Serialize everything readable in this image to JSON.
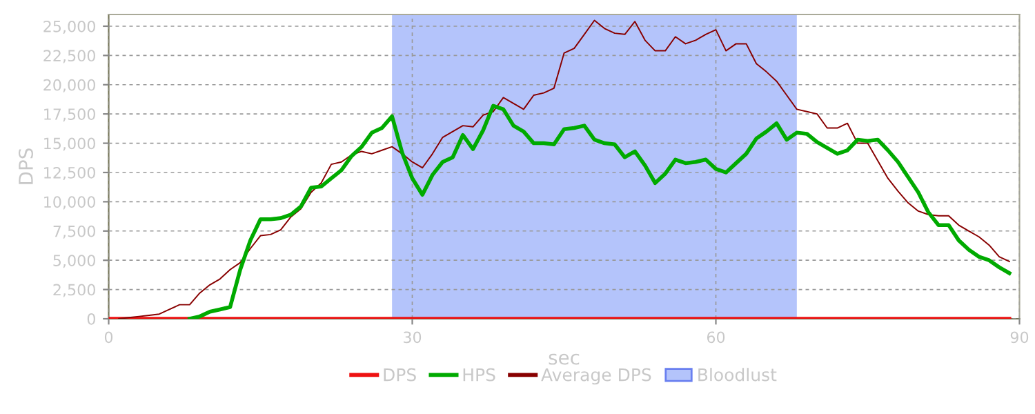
{
  "chart_data": {
    "type": "line",
    "xlabel": "sec",
    "ylabel": "DPS",
    "xlim": [
      0,
      90
    ],
    "xticks": [
      0,
      30,
      60,
      90
    ],
    "ylim": [
      0,
      26000
    ],
    "yticks": [
      {
        "value": 0,
        "label": "0"
      },
      {
        "value": 2500,
        "label": "2,500"
      },
      {
        "value": 5000,
        "label": "5,000"
      },
      {
        "value": 7500,
        "label": "7,500"
      },
      {
        "value": 10000,
        "label": "10,000"
      },
      {
        "value": 12500,
        "label": "12,500"
      },
      {
        "value": 15000,
        "label": "15,000"
      },
      {
        "value": 17500,
        "label": "17,500"
      },
      {
        "value": 20000,
        "label": "20,000"
      },
      {
        "value": 22500,
        "label": "22,500"
      },
      {
        "value": 25000,
        "label": "25,000"
      }
    ],
    "grid": true,
    "legend": "bottom",
    "marker": "none",
    "line_style": "solid",
    "series": [
      {
        "name": "DPS",
        "color": "#ee1111",
        "x": [
          0,
          89
        ],
        "values": [
          0,
          0
        ]
      },
      {
        "name": "HPS",
        "color": "#00aa00",
        "x": [
          8,
          9,
          10,
          11,
          12,
          13,
          14,
          15,
          16,
          17,
          18,
          19,
          20,
          21,
          22,
          23,
          24,
          25,
          26,
          27,
          28,
          29,
          30,
          31,
          32,
          33,
          34,
          35,
          36,
          37,
          38,
          39,
          40,
          41,
          42,
          43,
          44,
          45,
          46,
          47,
          48,
          49,
          50,
          51,
          52,
          53,
          54,
          55,
          56,
          57,
          58,
          59,
          60,
          61,
          62,
          63,
          64,
          65,
          66,
          67,
          68,
          69,
          70,
          71,
          72,
          73,
          74,
          75,
          76,
          77,
          78,
          79,
          80,
          81,
          82,
          83,
          84,
          85,
          86,
          87,
          88,
          89
        ],
        "values": [
          0,
          200,
          600,
          800,
          1000,
          4200,
          6700,
          8500,
          8500,
          8600,
          8900,
          9600,
          11200,
          11300,
          12000,
          12700,
          13900,
          14700,
          15900,
          16300,
          17300,
          14200,
          12000,
          10600,
          12300,
          13400,
          13800,
          15700,
          14500,
          16100,
          18200,
          17900,
          16500,
          16000,
          15000,
          15000,
          14900,
          16200,
          16300,
          16500,
          15300,
          15000,
          14900,
          13800,
          14300,
          13100,
          11600,
          12400,
          13600,
          13300,
          13400,
          13600,
          12800,
          12500,
          13300,
          14100,
          15400,
          16000,
          16700,
          15300,
          15900,
          15800,
          15100,
          14600,
          14100,
          14400,
          15300,
          15200,
          15300,
          14400,
          13400,
          12100,
          10800,
          9100,
          8000,
          8000,
          6700,
          5900,
          5300,
          5000,
          4400,
          3900
        ]
      },
      {
        "name": "Average DPS",
        "color": "#880000",
        "x": [
          1,
          2,
          3,
          4,
          5,
          6,
          7,
          8,
          9,
          10,
          11,
          12,
          13,
          14,
          15,
          16,
          17,
          18,
          19,
          20,
          21,
          22,
          23,
          24,
          25,
          26,
          27,
          28,
          29,
          30,
          31,
          32,
          33,
          34,
          35,
          36,
          37,
          38,
          39,
          40,
          41,
          42,
          43,
          44,
          45,
          46,
          47,
          48,
          49,
          50,
          51,
          52,
          53,
          54,
          55,
          56,
          57,
          58,
          59,
          60,
          61,
          62,
          63,
          64,
          65,
          66,
          67,
          68,
          69,
          70,
          71,
          72,
          73,
          74,
          75,
          76,
          77,
          78,
          79,
          80,
          81,
          82,
          83,
          84,
          85,
          86,
          87,
          88,
          89
        ],
        "values": [
          0,
          100,
          200,
          300,
          400,
          800,
          1200,
          1200,
          2200,
          2900,
          3400,
          4200,
          4800,
          6000,
          7100,
          7200,
          7600,
          8700,
          9400,
          10800,
          11600,
          13200,
          13400,
          14000,
          14300,
          14100,
          14400,
          14700,
          14100,
          13400,
          12900,
          14100,
          15500,
          16000,
          16500,
          16400,
          17400,
          17700,
          18900,
          18400,
          17900,
          19100,
          19300,
          19700,
          22700,
          23100,
          24300,
          25500,
          24800,
          24400,
          24300,
          25400,
          23800,
          22900,
          22900,
          24100,
          23500,
          23800,
          24300,
          24700,
          22900,
          23500,
          23500,
          21800,
          21100,
          20300,
          19100,
          17900,
          17700,
          17500,
          16300,
          16300,
          16700,
          15000,
          15000,
          13500,
          12000,
          10900,
          9900,
          9200,
          8900,
          8800,
          8800,
          8000,
          7500,
          7000,
          6300,
          5300,
          4900
        ]
      }
    ],
    "bands": [
      {
        "axis": "x",
        "from": 28,
        "to": 68,
        "label": "Bloodlust",
        "color": "#b4c4fb"
      }
    ]
  }
}
